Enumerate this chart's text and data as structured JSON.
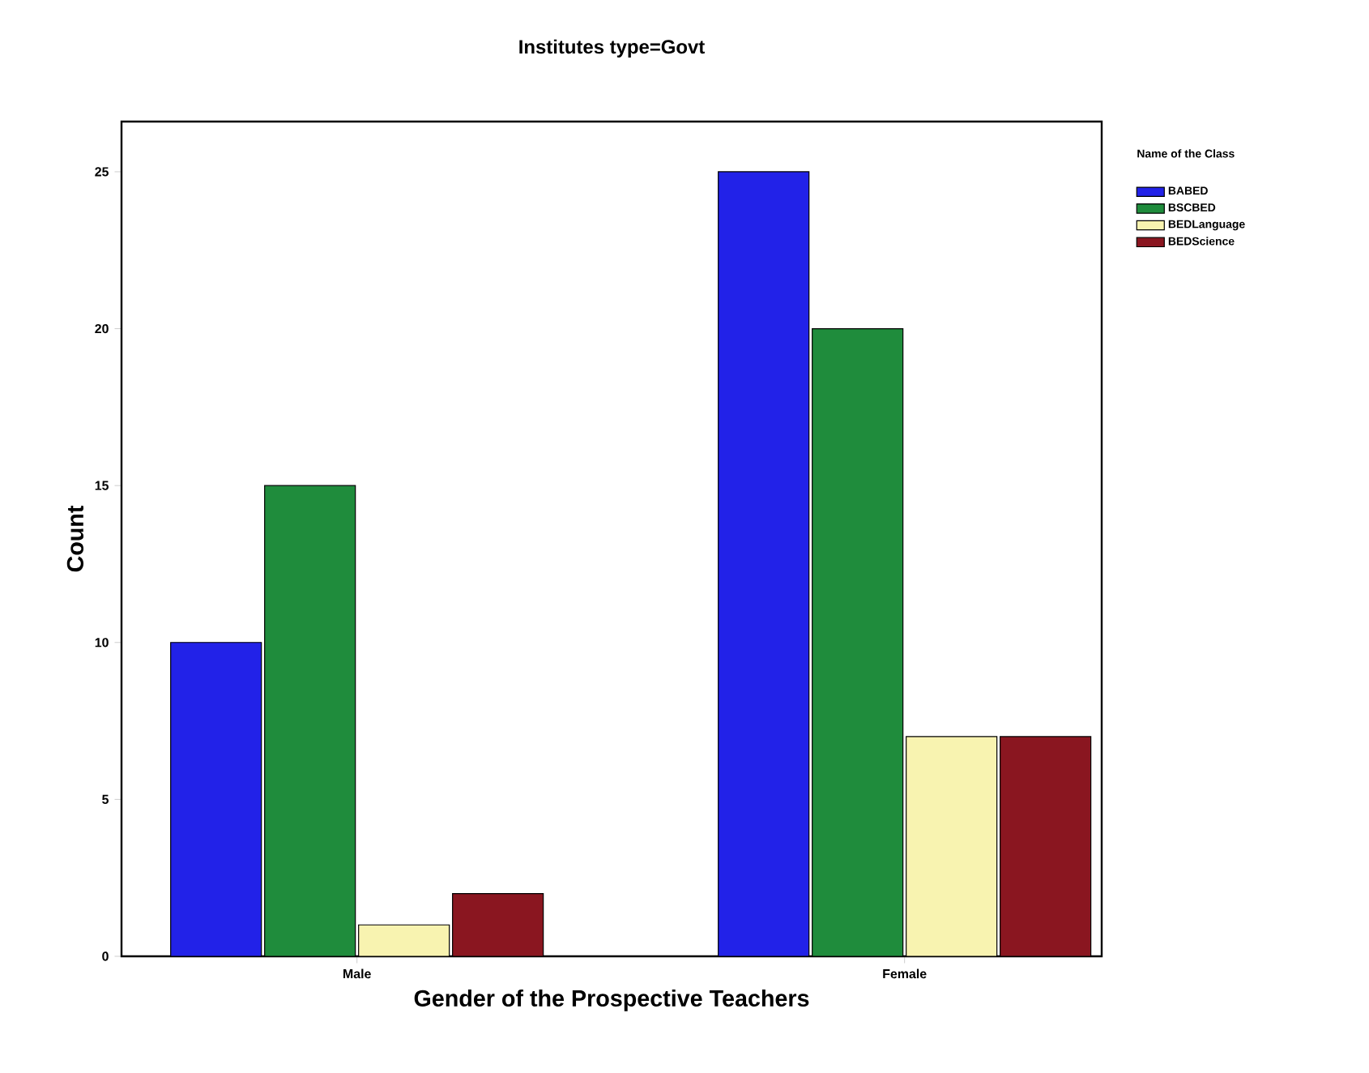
{
  "chart_data": {
    "type": "bar",
    "title": "Institutes type=Govt",
    "xlabel": "Gender of the Prospective Teachers",
    "ylabel": "Count",
    "legend_title": "Name of the Class",
    "categories": [
      "Male",
      "Female"
    ],
    "series": [
      {
        "name": "BABED",
        "color": "#2222e8",
        "values": [
          10,
          25
        ]
      },
      {
        "name": "BSCBED",
        "color": "#1f8c3c",
        "values": [
          15,
          20
        ]
      },
      {
        "name": "BEDLanguage",
        "color": "#f8f3b0",
        "values": [
          1,
          7
        ]
      },
      {
        "name": "BEDScience",
        "color": "#8a1620",
        "values": [
          2,
          7
        ]
      }
    ],
    "ylim": [
      0,
      26.6
    ],
    "yticks": [
      0,
      5,
      10,
      15,
      20,
      25
    ],
    "grid": false,
    "legend": "top right"
  }
}
